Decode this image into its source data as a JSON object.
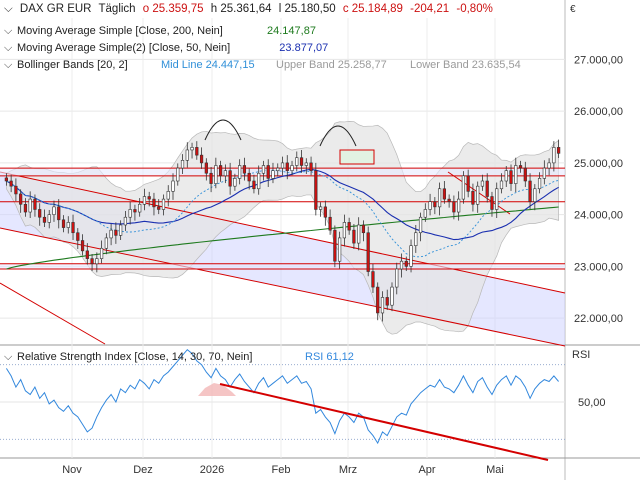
{
  "header": {
    "instrument": "DAX GR EUR",
    "period": "Täglich",
    "open": "o 25.359,75",
    "high": "h 25.361,64",
    "low": "l 25.180,50",
    "close": "c 25.184,89",
    "change": "-204,21",
    "change_pct": "-0,80%",
    "currency": "€"
  },
  "legend": {
    "sma200_label": "Moving Average Simple [Close, 200, Nein]",
    "sma200_value": "24.147,87",
    "sma50_label": "Moving Average Simple(2) [Close, 50, Nein]",
    "sma50_value": "23.877,07",
    "bb_label": "Bollinger Bands [20, 2]",
    "bb_mid": "Mid Line 24.447,15",
    "bb_upper": "Upper Band 25.258,77",
    "bb_lower": "Lower Band 23.635,54"
  },
  "rsi_legend": {
    "label": "Relative Strength Index [Close, 14, 30, 70, Nein]",
    "value": "RSI 61,12",
    "axis_title": "RSI"
  },
  "colors": {
    "candle_body": "#cc1111",
    "sma200": "#1e7a1e",
    "sma50": "#1a2fb0",
    "bb_fill": "#e4e4e4",
    "channel_fill": "#cfd3ff",
    "trend": "#d40000",
    "mid": "#2f8fd8",
    "rsi": "#3388dd",
    "up": "#1a7a1a",
    "down": "#cc1111"
  },
  "chart_data": [
    {
      "type": "candlestick",
      "title": "DAX GR EUR Täglich",
      "x_ticks": [
        "Nov",
        "Dez",
        "2026",
        "Feb",
        "Mrz",
        "Apr",
        "Mai"
      ],
      "y_ticks": [
        "22.000,00",
        "23.000,00",
        "24.000,00",
        "25.000,00",
        "26.000,00",
        "27.000,00"
      ],
      "ylim": [
        21500,
        27800
      ],
      "closes": [
        24650,
        24550,
        24400,
        24200,
        24050,
        24300,
        24100,
        23950,
        23850,
        24000,
        24150,
        23900,
        23750,
        23850,
        23650,
        23500,
        23300,
        23150,
        23050,
        23150,
        23350,
        23550,
        23700,
        23600,
        23800,
        23950,
        24100,
        24050,
        24200,
        24350,
        24300,
        24150,
        24100,
        24300,
        24450,
        24650,
        24900,
        25050,
        25250,
        25300,
        25150,
        25000,
        24800,
        24600,
        24950,
        24750,
        24850,
        24550,
        24700,
        24950,
        24800,
        24650,
        24500,
        24800,
        24950,
        24700,
        24850,
        24900,
        25000,
        24850,
        24950,
        25100,
        24950,
        25000,
        24850,
        24100,
        24150,
        23950,
        23700,
        23100,
        23550,
        23850,
        23700,
        23450,
        23800,
        23650,
        22900,
        22600,
        22100,
        22400,
        22250,
        22600,
        22950,
        23100,
        23000,
        23400,
        23650,
        23950,
        24100,
        24250,
        24150,
        24500,
        24300,
        24250,
        24050,
        24300,
        24750,
        24450,
        24200,
        24550,
        24650,
        24350,
        24100,
        24500,
        24650,
        24850,
        24600,
        24950,
        24900,
        24650,
        24250,
        24500,
        24700,
        24900,
        25000,
        25300,
        25185
      ],
      "support_resistance": [
        24900,
        24750,
        24250,
        23050,
        22950
      ],
      "sma200_last": 24147.87,
      "sma50_last": 23877.07,
      "bollinger_last": {
        "mid": 24447.15,
        "upper": 25258.77,
        "lower": 23635.54
      }
    },
    {
      "type": "line",
      "title": "Relative Strength Index",
      "y_ticks": [
        "50,00"
      ],
      "levels": [
        30,
        70
      ],
      "ylim": [
        20,
        80
      ],
      "series": [
        {
          "name": "RSI",
          "values": [
            68,
            64,
            58,
            62,
            56,
            54,
            58,
            52,
            55,
            49,
            51,
            47,
            45,
            48,
            44,
            42,
            38,
            34,
            36,
            42,
            47,
            51,
            54,
            50,
            57,
            55,
            59,
            57,
            62,
            60,
            57,
            62,
            60,
            64,
            66,
            69,
            72,
            75,
            78,
            76,
            72,
            70,
            66,
            63,
            68,
            64,
            62,
            58,
            62,
            65,
            61,
            58,
            55,
            60,
            63,
            58,
            60,
            62,
            64,
            60,
            62,
            64,
            60,
            61,
            57,
            44,
            46,
            42,
            39,
            33,
            40,
            44,
            42,
            39,
            44,
            42,
            35,
            32,
            28,
            34,
            32,
            37,
            42,
            44,
            43,
            49,
            52,
            55,
            57,
            59,
            58,
            62,
            58,
            57,
            55,
            59,
            64,
            59,
            55,
            61,
            63,
            58,
            54,
            59,
            62,
            64,
            59,
            64,
            62,
            58,
            52,
            57,
            60,
            62,
            61,
            64,
            61
          ]
        }
      ]
    }
  ]
}
